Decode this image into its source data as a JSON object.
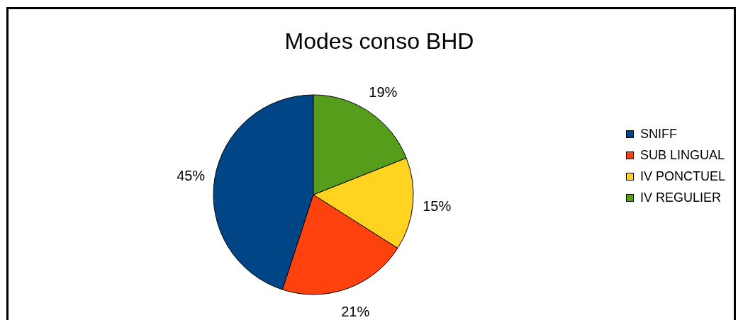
{
  "chart_data": {
    "type": "pie",
    "title": "Modes conso BHD",
    "categories": [
      "SNIFF",
      "SUB LINGUAL",
      "IV PONCTUEL",
      "IV REGULIER"
    ],
    "values": [
      45,
      21,
      15,
      19
    ],
    "colors": [
      "#004586",
      "#ff420e",
      "#ffd320",
      "#579d1c"
    ],
    "value_labels": [
      "45%",
      "21%",
      "15%",
      "19%"
    ],
    "legend": "right"
  }
}
